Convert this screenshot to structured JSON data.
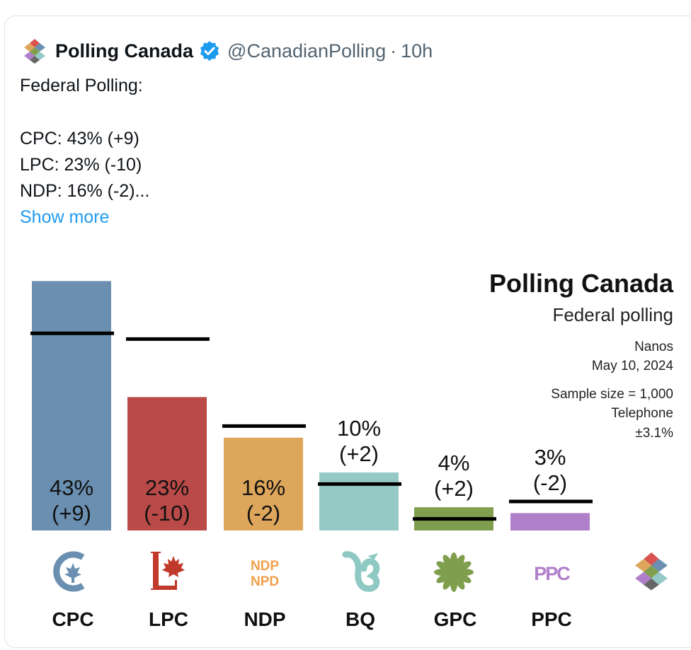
{
  "tweet": {
    "author": "Polling Canada",
    "handle": "@CanadianPolling",
    "separator": "·",
    "time": "10h",
    "lines": [
      "Federal Polling:",
      "CPC: 43% (+9)",
      "LPC: 23% (-10)",
      "NDP: 16% (-2)..."
    ],
    "show_more": "Show more"
  },
  "chart_info": {
    "title": "Polling Canada",
    "subtitle": "Federal polling",
    "pollster": "Nanos",
    "date": "May 10, 2024",
    "sample": "Sample size = 1,000",
    "method": "Telephone",
    "margin": "±3.1%"
  },
  "chart_data": {
    "type": "bar",
    "categories": [
      "CPC",
      "LPC",
      "NDP",
      "BQ",
      "GPC",
      "PPC"
    ],
    "values": [
      43,
      23,
      16,
      10,
      4,
      3
    ],
    "previous": [
      34,
      33,
      18,
      8,
      2,
      5
    ],
    "value_labels": [
      "43%",
      "23%",
      "16%",
      "10%",
      "4%",
      "3%"
    ],
    "change_labels": [
      "(+9)",
      "(-10)",
      "(-2)",
      "(+2)",
      "(+2)",
      "(-2)"
    ],
    "colors": [
      "#6a8fb0",
      "#b94a48",
      "#dea65a",
      "#95c9c6",
      "#7f9f4e",
      "#b07fc9"
    ],
    "logo_texts": [
      "",
      "",
      "NDP NPD",
      "",
      "",
      "PPC"
    ],
    "ylim": [
      0,
      45
    ]
  }
}
